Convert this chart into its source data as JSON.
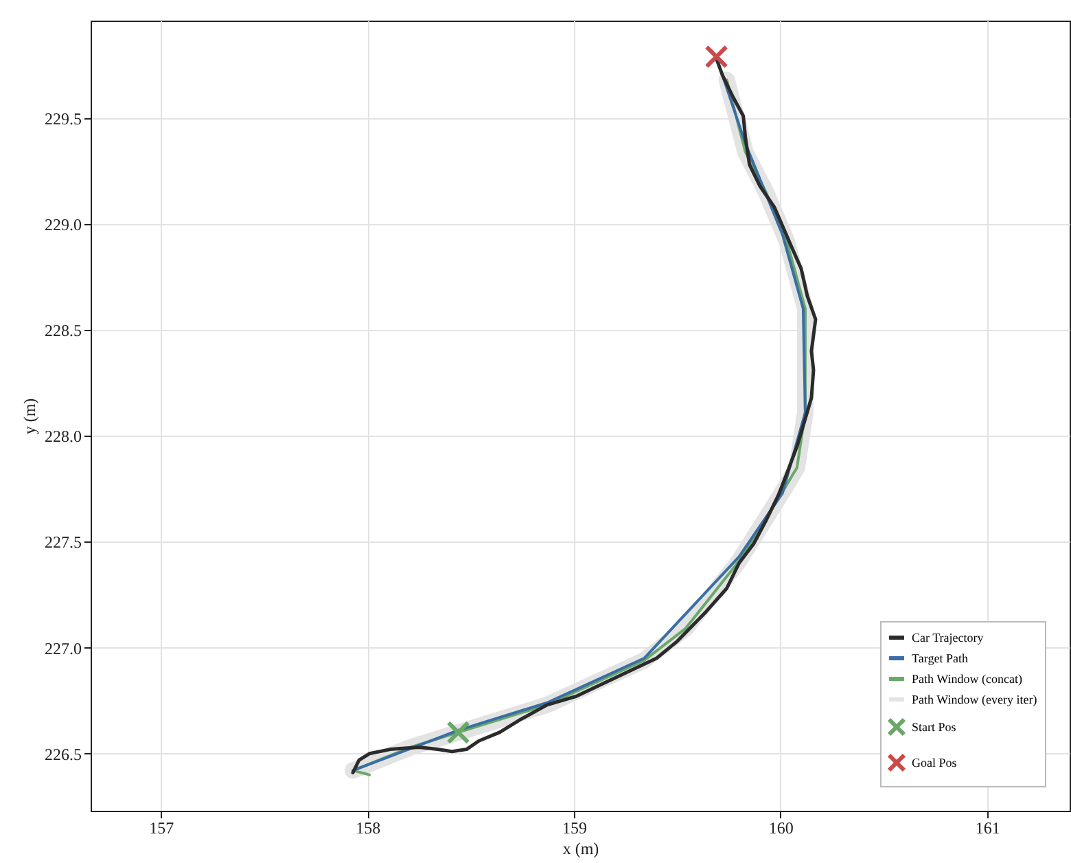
{
  "chart_data": {
    "type": "line",
    "xlabel": "x (m)",
    "ylabel": "y (m)",
    "xlim": [
      156.66,
      161.4
    ],
    "ylim": [
      226.23,
      229.96
    ],
    "xticks": [
      157,
      158,
      159,
      160,
      161
    ],
    "yticks": [
      226.5,
      {
        "value": 227,
        "label": "227.0"
      },
      227.5,
      {
        "value": 228,
        "label": "228.0"
      },
      228.5,
      {
        "value": 229,
        "label": "229.0"
      },
      229.5
    ],
    "grid": true,
    "legend": "bottom right",
    "series": [
      {
        "name": "Car Trajectory",
        "color": "#2b2b2b",
        "x": [
          157.93,
          157.96,
          158.01,
          158.11,
          158.25,
          158.34,
          158.41,
          158.48,
          158.54,
          158.64,
          158.74,
          158.87,
          159.01,
          159.14,
          159.27,
          159.4,
          159.5,
          159.57,
          159.64,
          159.74,
          159.8,
          159.87,
          159.93,
          159.99,
          160.03,
          160.08,
          160.12,
          160.15,
          160.16,
          160.15,
          160.17,
          160.13,
          160.1,
          160.05,
          160.01,
          159.97,
          159.9,
          159.85,
          159.83,
          159.82,
          159.77,
          159.72,
          159.69
        ],
        "values": [
          226.41,
          226.47,
          226.5,
          226.52,
          226.53,
          226.52,
          226.51,
          226.52,
          226.56,
          226.6,
          226.66,
          226.73,
          226.77,
          226.83,
          226.89,
          226.95,
          227.03,
          227.1,
          227.17,
          227.28,
          227.4,
          227.49,
          227.6,
          227.72,
          227.82,
          227.95,
          228.08,
          228.18,
          228.31,
          228.4,
          228.55,
          228.66,
          228.79,
          228.9,
          228.99,
          229.08,
          229.18,
          229.28,
          229.41,
          229.51,
          229.6,
          229.7,
          229.78
        ]
      },
      {
        "name": "Target Path",
        "color": "#3a6ea5",
        "x": [
          157.93,
          158.44,
          158.87,
          159.34,
          159.8,
          160.01,
          160.12,
          160.11,
          160.01,
          159.83,
          159.72
        ],
        "values": [
          226.42,
          226.61,
          226.74,
          226.95,
          227.43,
          227.73,
          228.11,
          228.6,
          228.95,
          229.38,
          229.7
        ]
      },
      {
        "name": "Path Window (concat)",
        "color": "#6aa86a",
        "x": [
          158.01,
          157.93,
          158.21,
          158.44,
          158.87,
          159.34,
          159.54,
          159.8,
          160.0,
          160.08,
          160.12,
          160.12,
          160.03,
          159.93,
          159.83,
          159.74
        ],
        "values": [
          226.4,
          226.42,
          226.53,
          226.6,
          226.73,
          226.94,
          227.09,
          227.41,
          227.72,
          227.85,
          228.11,
          228.6,
          228.92,
          229.15,
          229.34,
          229.68
        ]
      },
      {
        "name": "Path Window (every iter)",
        "color": "#e3e3e3",
        "x": [
          157.93,
          158.21,
          158.44,
          158.87,
          159.34,
          159.54,
          159.8,
          160.0,
          160.08,
          160.12,
          160.12,
          160.03,
          159.93,
          159.83,
          159.74
        ],
        "values": [
          226.42,
          226.53,
          226.6,
          226.73,
          226.94,
          227.09,
          227.41,
          227.72,
          227.85,
          228.11,
          228.6,
          228.92,
          229.15,
          229.34,
          229.68
        ]
      },
      {
        "name": "Start Pos",
        "type": "scatter",
        "marker": "cross",
        "color": "#6aa86a",
        "x": [
          158.44
        ],
        "values": [
          226.6
        ]
      },
      {
        "name": "Goal Pos",
        "type": "scatter",
        "marker": "cross",
        "color": "#c94a4a",
        "x": [
          159.69
        ],
        "values": [
          229.79
        ]
      }
    ]
  }
}
